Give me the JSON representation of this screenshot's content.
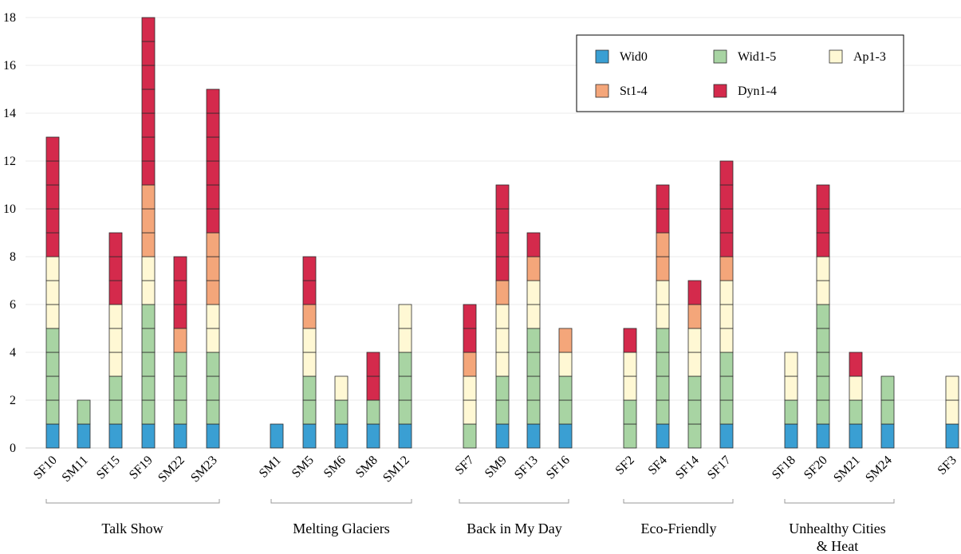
{
  "chart_data": {
    "type": "bar",
    "stacked": true,
    "segmented_units": true,
    "title": "",
    "xlabel": "",
    "ylabel": "",
    "ylim": [
      0,
      18
    ],
    "yticks": [
      0,
      2,
      4,
      6,
      8,
      10,
      12,
      14,
      16,
      18
    ],
    "grid": "horizontal",
    "legend_position": "top-right",
    "series": [
      {
        "name": "Wid0",
        "color": "#3a9fd3"
      },
      {
        "name": "Wid1-5",
        "color": "#a8d4a3"
      },
      {
        "name": "Ap1-3",
        "color": "#fff8d4"
      },
      {
        "name": "St1-4",
        "color": "#f4a67a"
      },
      {
        "name": "Dyn1-4",
        "color": "#d42a4c"
      }
    ],
    "groups": [
      {
        "label": "Talk Show",
        "bars": [
          {
            "label": "SF10",
            "values": [
              1,
              4,
              3,
              0,
              5
            ]
          },
          {
            "label": "SM11",
            "values": [
              1,
              1,
              0,
              0,
              0
            ]
          },
          {
            "label": "SF15",
            "values": [
              1,
              2,
              3,
              0,
              3
            ]
          },
          {
            "label": "SF19",
            "values": [
              1,
              5,
              2,
              3,
              7
            ]
          },
          {
            "label": "SM22",
            "values": [
              1,
              3,
              0,
              1,
              3
            ]
          },
          {
            "label": "SM23",
            "values": [
              1,
              3,
              2,
              3,
              6
            ]
          }
        ]
      },
      {
        "label": "Melting Glaciers",
        "bars": [
          {
            "label": "SM1",
            "values": [
              1,
              0,
              0,
              0,
              0
            ]
          },
          {
            "label": "SM5",
            "values": [
              1,
              2,
              2,
              1,
              2
            ]
          },
          {
            "label": "SM6",
            "values": [
              1,
              1,
              1,
              0,
              0
            ]
          },
          {
            "label": "SM8",
            "values": [
              1,
              1,
              0,
              0,
              2
            ]
          },
          {
            "label": "SM12",
            "values": [
              1,
              3,
              2,
              0,
              0
            ]
          }
        ]
      },
      {
        "label": "Back in My Day",
        "bars": [
          {
            "label": "SF7",
            "values": [
              0,
              1,
              2,
              1,
              2
            ]
          },
          {
            "label": "SM9",
            "values": [
              1,
              2,
              3,
              1,
              4
            ]
          },
          {
            "label": "SF13",
            "values": [
              1,
              4,
              2,
              1,
              1
            ]
          },
          {
            "label": "SF16",
            "values": [
              1,
              2,
              1,
              1,
              0
            ]
          }
        ]
      },
      {
        "label": "Eco-Friendly",
        "bars": [
          {
            "label": "SF2",
            "values": [
              0,
              2,
              2,
              0,
              1
            ]
          },
          {
            "label": "SF4",
            "values": [
              1,
              4,
              2,
              2,
              2
            ]
          },
          {
            "label": "SF14",
            "values": [
              0,
              3,
              2,
              1,
              1
            ]
          },
          {
            "label": "SF17",
            "values": [
              1,
              3,
              3,
              1,
              4
            ]
          }
        ]
      },
      {
        "label": "Unhealthy Cities\n& Heat",
        "bars": [
          {
            "label": "SF18",
            "values": [
              1,
              1,
              2,
              0,
              0
            ]
          },
          {
            "label": "SF20",
            "values": [
              1,
              5,
              2,
              0,
              3
            ]
          },
          {
            "label": "SM21",
            "values": [
              1,
              1,
              1,
              0,
              1
            ]
          },
          {
            "label": "SM24",
            "values": [
              1,
              2,
              0,
              0,
              0
            ]
          }
        ]
      },
      {
        "label": "",
        "bars": [
          {
            "label": "SF3",
            "values": [
              1,
              0,
              2,
              0,
              0
            ]
          }
        ]
      }
    ]
  }
}
